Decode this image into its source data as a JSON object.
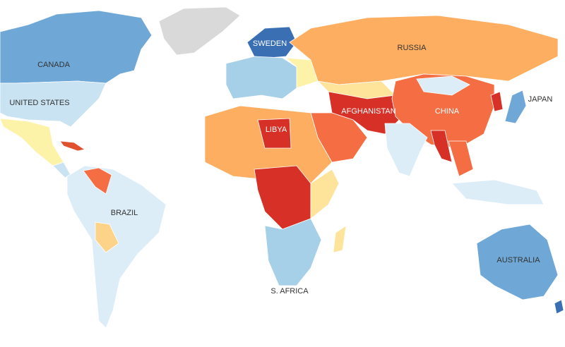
{
  "labels": [
    "CANADA",
    "UNITED STATES",
    "SWEDEN",
    "RUSSIA",
    "JAPAN",
    "CHINA",
    "AFGHANISTAN",
    "LIBYA",
    "BRAZIL",
    "AUSTRALIA",
    "S. AFRICA"
  ]
}
